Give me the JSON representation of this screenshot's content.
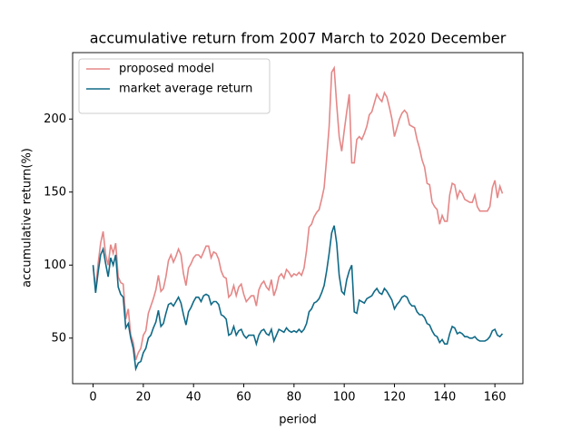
{
  "chart_data": {
    "type": "line",
    "title": "accumulative return from 2007 March to 2020 December",
    "x_label": "period",
    "y_label": "accumulative return(%)",
    "x": [
      0,
      1,
      2,
      3,
      4,
      5,
      6,
      7,
      8,
      9,
      10,
      11,
      12,
      13,
      14,
      15,
      16,
      17,
      18,
      19,
      20,
      21,
      22,
      23,
      24,
      25,
      26,
      27,
      28,
      29,
      30,
      31,
      32,
      33,
      34,
      35,
      36,
      37,
      38,
      39,
      40,
      41,
      42,
      43,
      44,
      45,
      46,
      47,
      48,
      49,
      50,
      51,
      52,
      53,
      54,
      55,
      56,
      57,
      58,
      59,
      60,
      61,
      62,
      63,
      64,
      65,
      66,
      67,
      68,
      69,
      70,
      71,
      72,
      73,
      74,
      75,
      76,
      77,
      78,
      79,
      80,
      81,
      82,
      83,
      84,
      85,
      86,
      87,
      88,
      89,
      90,
      91,
      92,
      93,
      94,
      95,
      96,
      97,
      98,
      99,
      100,
      101,
      102,
      103,
      104,
      105,
      106,
      107,
      108,
      109,
      110,
      111,
      112,
      113,
      114,
      115,
      116,
      117,
      118,
      119,
      120,
      121,
      122,
      123,
      124,
      125,
      126,
      127,
      128,
      129,
      130,
      131,
      132,
      133,
      134,
      135,
      136,
      137,
      138,
      139,
      140,
      141,
      142,
      143,
      144,
      145,
      146,
      147,
      148,
      149,
      150,
      151,
      152,
      153,
      154,
      155,
      156,
      157,
      158,
      159,
      160,
      161,
      162,
      163
    ],
    "series": [
      {
        "name": "proposed model",
        "color": "#e58787",
        "values": [
          100,
          83,
          101,
          115,
          123,
          107,
          100,
          114,
          108,
          115,
          92,
          88,
          87,
          63,
          70,
          52,
          47,
          35,
          40,
          43,
          52,
          55,
          67,
          72,
          77,
          83,
          93,
          82,
          84,
          92,
          103,
          107,
          102,
          106,
          111,
          107,
          94,
          86,
          98,
          101,
          105,
          107,
          107,
          105,
          109,
          113,
          113,
          105,
          109,
          108,
          104,
          96,
          92,
          91,
          78,
          80,
          86,
          79,
          85,
          87,
          80,
          75,
          77,
          79,
          79,
          72,
          83,
          87,
          89,
          85,
          83,
          90,
          79,
          84,
          92,
          94,
          91,
          97,
          95,
          92,
          94,
          93,
          95,
          93,
          98,
          110,
          126,
          128,
          133,
          136,
          138,
          145,
          153,
          173,
          195,
          232,
          235,
          210,
          188,
          178,
          192,
          205,
          217,
          170,
          170,
          186,
          188,
          186,
          190,
          195,
          203,
          205,
          211,
          217,
          214,
          212,
          218,
          215,
          208,
          200,
          188,
          194,
          200,
          204,
          206,
          204,
          196,
          195,
          194,
          186,
          180,
          172,
          167,
          156,
          155,
          143,
          140,
          138,
          128,
          134,
          130,
          130,
          148,
          156,
          155,
          146,
          151,
          149,
          145,
          144,
          143,
          143,
          148,
          140,
          137,
          137,
          137,
          137,
          140,
          153,
          158,
          146,
          154,
          149
        ]
      },
      {
        "name": "market average return",
        "color": "#106a87",
        "values": [
          100,
          81,
          95,
          107,
          111,
          101,
          92,
          105,
          100,
          107,
          85,
          80,
          78,
          57,
          60,
          50,
          43,
          29,
          33,
          34,
          40,
          43,
          50,
          52,
          57,
          61,
          69,
          58,
          60,
          67,
          73,
          74,
          72,
          75,
          78,
          74,
          66,
          59,
          68,
          71,
          75,
          78,
          78,
          75,
          79,
          80,
          79,
          73,
          75,
          75,
          73,
          66,
          65,
          63,
          52,
          53,
          58,
          52,
          55,
          56,
          52,
          50,
          52,
          52,
          52,
          46,
          52,
          55,
          56,
          53,
          52,
          56,
          48,
          52,
          56,
          55,
          54,
          57,
          55,
          54,
          55,
          54,
          56,
          54,
          56,
          60,
          68,
          70,
          74,
          75,
          77,
          81,
          86,
          96,
          108,
          122,
          127,
          115,
          93,
          82,
          80,
          90,
          96,
          100,
          68,
          67,
          76,
          75,
          74,
          77,
          78,
          79,
          82,
          84,
          81,
          80,
          84,
          82,
          79,
          76,
          70,
          73,
          75,
          78,
          79,
          78,
          74,
          72,
          72,
          68,
          66,
          66,
          64,
          60,
          59,
          55,
          52,
          51,
          47,
          49,
          46,
          46,
          53,
          58,
          57,
          53,
          54,
          53,
          51,
          51,
          50,
          50,
          51,
          49,
          48,
          48,
          48,
          49,
          51,
          55,
          56,
          52,
          51,
          53
        ]
      }
    ],
    "xlim": [
      -8.15,
      171.15
    ],
    "ylim": [
      18.8,
      245.5
    ],
    "xticks": [
      0,
      20,
      40,
      60,
      80,
      100,
      120,
      140,
      160
    ],
    "yticks": [
      50,
      100,
      150,
      200
    ],
    "legend": "upper left",
    "grid": false
  }
}
